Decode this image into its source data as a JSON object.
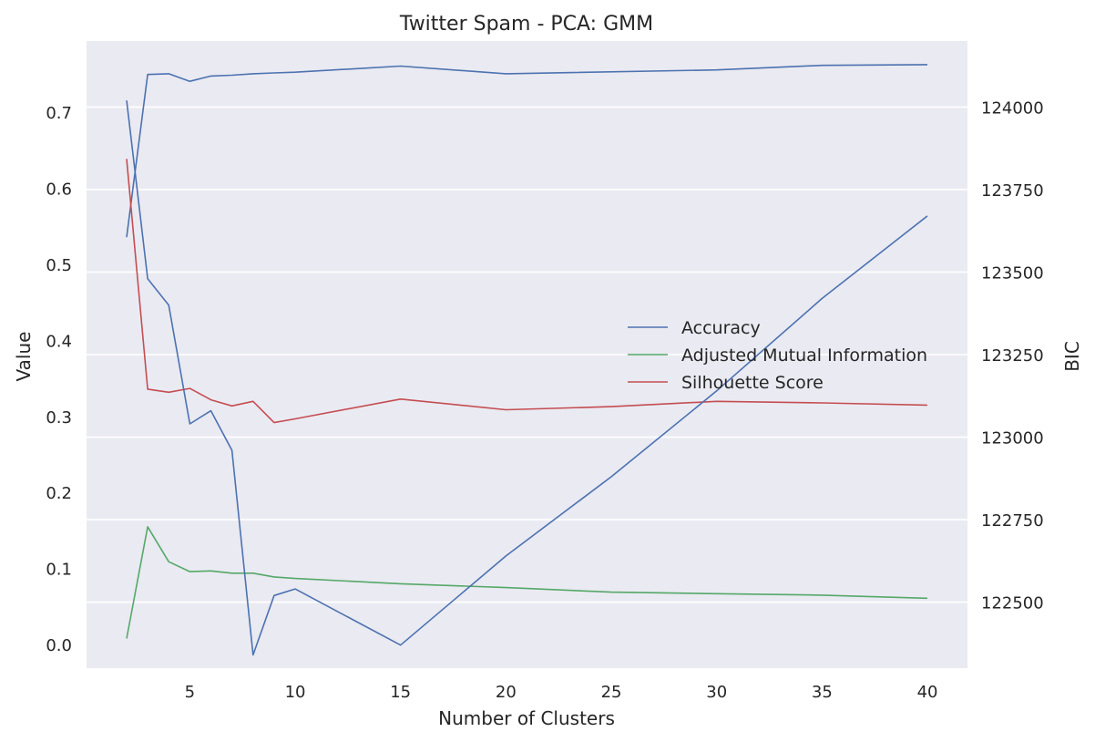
{
  "chart_data": {
    "type": "line",
    "title": "Twitter Spam - PCA: GMM",
    "xlabel": "Number of Clusters",
    "ylabel": "Value",
    "y2label": "BIC",
    "xlim": [
      0.1,
      41.9
    ],
    "ylim": [
      -0.03,
      0.795
    ],
    "y2lim": [
      122300,
      124200
    ],
    "xticks": [
      5,
      10,
      15,
      20,
      25,
      30,
      35,
      40
    ],
    "yticks": [
      0.0,
      0.1,
      0.2,
      0.3,
      0.4,
      0.5,
      0.6,
      0.7
    ],
    "y2ticks": [
      122500,
      122750,
      123000,
      123250,
      123500,
      123750,
      124000
    ],
    "grid": true,
    "legend_position": "center-right",
    "series": [
      {
        "name": "Accuracy",
        "axis": "left",
        "color": "#4C72B0",
        "x": [
          2,
          3,
          4,
          5,
          6,
          7,
          8,
          9,
          10,
          15,
          20,
          30,
          35,
          40
        ],
        "values": [
          0.537,
          0.751,
          0.752,
          0.742,
          0.749,
          0.75,
          0.752,
          0.753,
          0.754,
          0.762,
          0.752,
          0.757,
          0.763,
          0.764
        ]
      },
      {
        "name": "Adjusted Mutual Information",
        "axis": "left",
        "color": "#55A868",
        "x": [
          2,
          3,
          4,
          5,
          6,
          7,
          8,
          9,
          10,
          15,
          20,
          25,
          30,
          35,
          40
        ],
        "values": [
          0.009,
          0.156,
          0.11,
          0.097,
          0.098,
          0.095,
          0.095,
          0.09,
          0.088,
          0.081,
          0.076,
          0.07,
          0.068,
          0.066,
          0.062
        ]
      },
      {
        "name": "Silhouette Score",
        "axis": "left",
        "color": "#C44E52",
        "x": [
          2,
          3,
          4,
          5,
          6,
          7,
          8,
          9,
          10,
          15,
          20,
          25,
          30,
          35,
          40
        ],
        "values": [
          0.64,
          0.337,
          0.333,
          0.338,
          0.323,
          0.315,
          0.321,
          0.293,
          0.298,
          0.324,
          0.31,
          0.314,
          0.321,
          0.319,
          0.316
        ]
      },
      {
        "name": "BIC",
        "axis": "right",
        "color": "#4C72B0",
        "x": [
          2,
          3,
          4,
          5,
          6,
          7,
          8,
          9,
          10,
          15,
          20,
          25,
          30,
          35,
          40
        ],
        "values": [
          124020,
          123480,
          123400,
          123040,
          123080,
          122960,
          122340,
          122520,
          122540,
          122370,
          122640,
          122880,
          123140,
          123420,
          123670
        ]
      }
    ]
  }
}
